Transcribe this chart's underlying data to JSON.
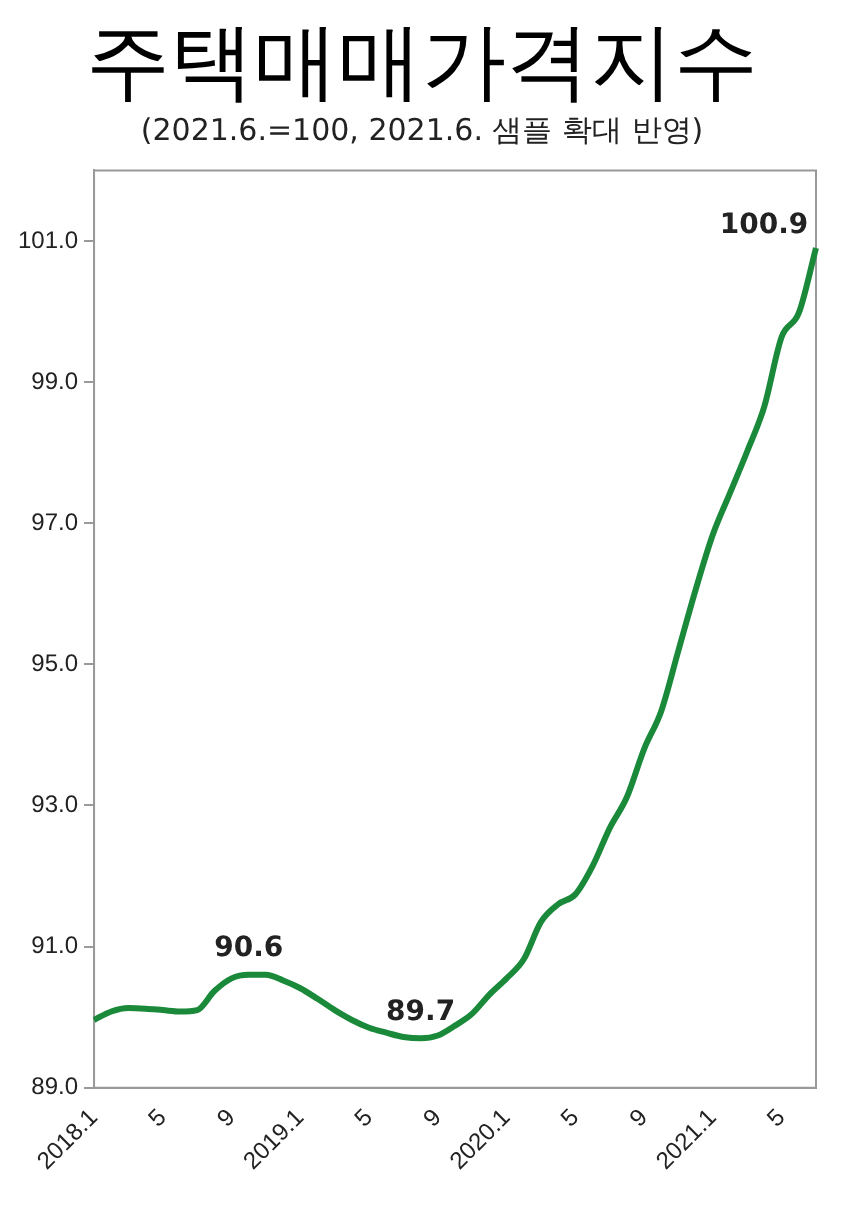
{
  "chart_data": {
    "type": "line",
    "title": "주택매매가격지수",
    "subtitle": "(2021.6.=100, 2021.6. 샘플 확대 반영)",
    "categories": [
      "2018.1",
      null,
      null,
      null,
      "5",
      null,
      null,
      null,
      "9",
      null,
      null,
      null,
      "2019.1",
      null,
      null,
      null,
      "5",
      null,
      null,
      null,
      "9",
      null,
      null,
      null,
      "2020.1",
      null,
      null,
      null,
      "5",
      null,
      null,
      null,
      "9",
      null,
      null,
      null,
      "2021.1",
      null,
      null,
      null,
      "5",
      null,
      null
    ],
    "series": [
      {
        "color": "#1a8a3a",
        "values": [
          89.96,
          90.08,
          90.13,
          90.12,
          90.1,
          90.08,
          90.1,
          90.37,
          90.55,
          90.6,
          90.6,
          90.52,
          90.41,
          90.26,
          90.1,
          89.96,
          89.85,
          89.78,
          89.72,
          89.7,
          89.74,
          89.88,
          90.05,
          90.32,
          90.55,
          90.82,
          91.35,
          91.6,
          91.74,
          92.14,
          92.68,
          93.12,
          93.8,
          94.34,
          95.2,
          96.06,
          96.84,
          97.43,
          98.02,
          98.66,
          99.64,
          99.98,
          100.9
        ],
        "value_labels": [
          null,
          null,
          null,
          null,
          null,
          null,
          null,
          null,
          null,
          "90.6",
          null,
          null,
          null,
          null,
          null,
          null,
          null,
          null,
          null,
          "89.7",
          null,
          null,
          null,
          null,
          null,
          null,
          null,
          null,
          null,
          null,
          null,
          null,
          null,
          null,
          null,
          null,
          null,
          null,
          null,
          null,
          null,
          null,
          "100.9"
        ]
      }
    ],
    "ylim": [
      89,
      102
    ],
    "yticks": [
      {
        "value": 89,
        "label": "89.0"
      },
      {
        "value": 91,
        "label": "91.0"
      },
      {
        "value": 93,
        "label": "93.0"
      },
      {
        "value": 95,
        "label": "95.0"
      },
      {
        "value": 97,
        "label": "97.0"
      },
      {
        "value": 99,
        "label": "99.0"
      },
      {
        "value": 101,
        "label": "101.0"
      }
    ],
    "grid": false,
    "legend": false,
    "marker": "none",
    "line_style": "solid"
  }
}
